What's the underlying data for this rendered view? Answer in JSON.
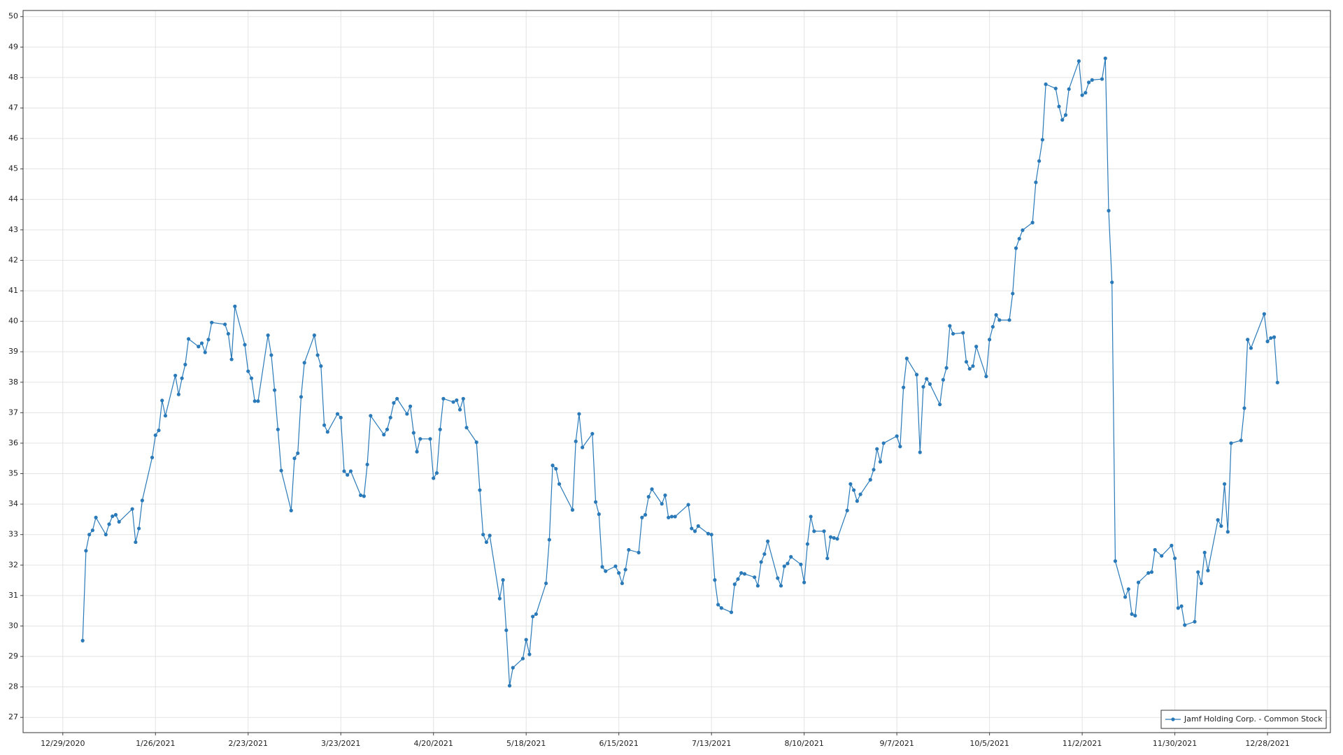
{
  "chart_data": {
    "type": "line",
    "x": [
      "1/4/2021",
      "1/5/2021",
      "1/6/2021",
      "1/7/2021",
      "1/8/2021",
      "1/11/2021",
      "1/12/2021",
      "1/13/2021",
      "1/14/2021",
      "1/15/2021",
      "1/19/2021",
      "1/20/2021",
      "1/21/2021",
      "1/22/2021",
      "1/25/2021",
      "1/26/2021",
      "1/27/2021",
      "1/28/2021",
      "1/29/2021",
      "2/1/2021",
      "2/2/2021",
      "2/3/2021",
      "2/4/2021",
      "2/5/2021",
      "2/8/2021",
      "2/9/2021",
      "2/10/2021",
      "2/11/2021",
      "2/12/2021",
      "2/16/2021",
      "2/17/2021",
      "2/18/2021",
      "2/19/2021",
      "2/22/2021",
      "2/23/2021",
      "2/24/2021",
      "2/25/2021",
      "2/26/2021",
      "3/1/2021",
      "3/2/2021",
      "3/3/2021",
      "3/4/2021",
      "3/5/2021",
      "3/8/2021",
      "3/9/2021",
      "3/10/2021",
      "3/11/2021",
      "3/12/2021",
      "3/15/2021",
      "3/16/2021",
      "3/17/2021",
      "3/18/2021",
      "3/19/2021",
      "3/22/2021",
      "3/23/2021",
      "3/24/2021",
      "3/25/2021",
      "3/26/2021",
      "3/29/2021",
      "3/30/2021",
      "3/31/2021",
      "4/1/2021",
      "4/5/2021",
      "4/6/2021",
      "4/7/2021",
      "4/8/2021",
      "4/9/2021",
      "4/12/2021",
      "4/13/2021",
      "4/14/2021",
      "4/15/2021",
      "4/16/2021",
      "4/19/2021",
      "4/20/2021",
      "4/21/2021",
      "4/22/2021",
      "4/23/2021",
      "4/26/2021",
      "4/27/2021",
      "4/28/2021",
      "4/29/2021",
      "4/30/2021",
      "5/3/2021",
      "5/4/2021",
      "5/5/2021",
      "5/6/2021",
      "5/7/2021",
      "5/10/2021",
      "5/11/2021",
      "5/12/2021",
      "5/13/2021",
      "5/14/2021",
      "5/17/2021",
      "5/18/2021",
      "5/19/2021",
      "5/20/2021",
      "5/21/2021",
      "5/24/2021",
      "5/25/2021",
      "5/26/2021",
      "5/27/2021",
      "5/28/2021",
      "6/1/2021",
      "6/2/2021",
      "6/3/2021",
      "6/4/2021",
      "6/7/2021",
      "6/8/2021",
      "6/9/2021",
      "6/10/2021",
      "6/11/2021",
      "6/14/2021",
      "6/15/2021",
      "6/16/2021",
      "6/17/2021",
      "6/18/2021",
      "6/21/2021",
      "6/22/2021",
      "6/23/2021",
      "6/24/2021",
      "6/25/2021",
      "6/28/2021",
      "6/29/2021",
      "6/30/2021",
      "7/1/2021",
      "7/2/2021",
      "7/6/2021",
      "7/7/2021",
      "7/8/2021",
      "7/9/2021",
      "7/12/2021",
      "7/13/2021",
      "7/14/2021",
      "7/15/2021",
      "7/16/2021",
      "7/19/2021",
      "7/20/2021",
      "7/21/2021",
      "7/22/2021",
      "7/23/2021",
      "7/26/2021",
      "7/27/2021",
      "7/28/2021",
      "7/29/2021",
      "7/30/2021",
      "8/2/2021",
      "8/3/2021",
      "8/4/2021",
      "8/5/2021",
      "8/6/2021",
      "8/9/2021",
      "8/10/2021",
      "8/11/2021",
      "8/12/2021",
      "8/13/2021",
      "8/16/2021",
      "8/17/2021",
      "8/18/2021",
      "8/19/2021",
      "8/20/2021",
      "8/23/2021",
      "8/24/2021",
      "8/25/2021",
      "8/26/2021",
      "8/27/2021",
      "8/30/2021",
      "8/31/2021",
      "9/1/2021",
      "9/2/2021",
      "9/3/2021",
      "9/7/2021",
      "9/8/2021",
      "9/9/2021",
      "9/10/2021",
      "9/13/2021",
      "9/14/2021",
      "9/15/2021",
      "9/16/2021",
      "9/17/2021",
      "9/20/2021",
      "9/21/2021",
      "9/22/2021",
      "9/23/2021",
      "9/24/2021",
      "9/27/2021",
      "9/28/2021",
      "9/29/2021",
      "9/30/2021",
      "10/1/2021",
      "10/4/2021",
      "10/5/2021",
      "10/6/2021",
      "10/7/2021",
      "10/8/2021",
      "10/11/2021",
      "10/12/2021",
      "10/13/2021",
      "10/14/2021",
      "10/15/2021",
      "10/18/2021",
      "10/19/2021",
      "10/20/2021",
      "10/21/2021",
      "10/22/2021",
      "10/25/2021",
      "10/26/2021",
      "10/27/2021",
      "10/28/2021",
      "10/29/2021",
      "11/1/2021",
      "11/2/2021",
      "11/3/2021",
      "11/4/2021",
      "11/5/2021",
      "11/8/2021",
      "11/9/2021",
      "11/10/2021",
      "11/11/2021",
      "11/12/2021",
      "11/15/2021",
      "11/16/2021",
      "11/17/2021",
      "11/18/2021",
      "11/19/2021",
      "11/22/2021",
      "11/23/2021",
      "11/24/2021",
      "11/26/2021",
      "11/29/2021",
      "11/30/2021",
      "12/1/2021",
      "12/2/2021",
      "12/3/2021",
      "12/6/2021",
      "12/7/2021",
      "12/8/2021",
      "12/9/2021",
      "12/10/2021",
      "12/13/2021",
      "12/14/2021",
      "12/15/2021",
      "12/16/2021",
      "12/17/2021",
      "12/20/2021",
      "12/21/2021",
      "12/22/2021",
      "12/23/2021",
      "12/27/2021",
      "12/28/2021",
      "12/29/2021",
      "12/30/2021",
      "12/31/2021"
    ],
    "series": [
      {
        "name": "Jamf Holding Corp. - Common Stock",
        "color": "#2a7ab9",
        "values": [
          29.52,
          32.47,
          33.0,
          33.14,
          33.56,
          33.0,
          33.34,
          33.6,
          33.65,
          33.42,
          33.84,
          32.75,
          33.2,
          34.12,
          35.53,
          36.26,
          36.42,
          37.4,
          36.9,
          38.22,
          37.6,
          38.13,
          38.58,
          39.42,
          39.17,
          39.28,
          38.98,
          39.4,
          39.96,
          39.9,
          39.59,
          38.75,
          40.49,
          39.23,
          38.36,
          38.13,
          37.38,
          37.38,
          39.54,
          38.89,
          37.74,
          36.45,
          35.1,
          33.79,
          35.5,
          35.67,
          37.52,
          38.64,
          39.54,
          38.89,
          38.53,
          36.59,
          36.37,
          36.96,
          36.84,
          35.08,
          34.96,
          35.08,
          34.29,
          34.26,
          35.3,
          36.9,
          36.28,
          36.45,
          36.84,
          37.32,
          37.46,
          36.96,
          37.21,
          36.34,
          35.72,
          36.14,
          36.14,
          34.85,
          35.02,
          36.45,
          37.46,
          37.35,
          37.41,
          37.1,
          37.46,
          36.51,
          36.03,
          34.46,
          33.0,
          32.75,
          32.97,
          30.9,
          31.51,
          29.86,
          28.04,
          28.63,
          28.93,
          29.55,
          29.07,
          30.31,
          30.39,
          31.4,
          32.83,
          35.27,
          35.16,
          34.66,
          33.81,
          36.06,
          36.96,
          35.86,
          36.31,
          34.07,
          33.67,
          31.94,
          31.8,
          31.96,
          31.74,
          31.4,
          31.85,
          32.5,
          32.41,
          33.56,
          33.65,
          34.24,
          34.49,
          34.01,
          34.29,
          33.56,
          33.59,
          33.59,
          33.98,
          33.2,
          33.11,
          33.28,
          33.03,
          33.0,
          31.51,
          30.7,
          30.59,
          30.45,
          31.37,
          31.54,
          31.74,
          31.71,
          31.6,
          31.32,
          32.1,
          32.36,
          32.78,
          31.57,
          31.32,
          31.96,
          32.05,
          32.27,
          32.02,
          31.43,
          32.69,
          33.59,
          33.11,
          33.11,
          32.22,
          32.92,
          32.89,
          32.86,
          33.79,
          34.66,
          34.46,
          34.1,
          34.32,
          34.8,
          35.13,
          35.81,
          35.39,
          36.0,
          36.23,
          35.89,
          37.83,
          38.78,
          38.25,
          35.7,
          37.85,
          38.11,
          37.94,
          37.27,
          38.08,
          38.47,
          39.85,
          39.59,
          39.62,
          38.67,
          38.44,
          38.53,
          39.17,
          38.19,
          39.4,
          39.82,
          40.21,
          40.04,
          40.04,
          40.91,
          42.4,
          42.71,
          42.99,
          43.24,
          44.56,
          45.26,
          45.96,
          47.78,
          47.64,
          47.05,
          46.61,
          46.77,
          47.62,
          48.54,
          47.42,
          47.5,
          47.84,
          47.92,
          47.95,
          48.63,
          43.63,
          41.28,
          32.13,
          30.95,
          31.21,
          30.39,
          30.34,
          31.43,
          31.74,
          31.77,
          32.5,
          32.3,
          32.64,
          32.22,
          30.59,
          30.65,
          30.03,
          30.14,
          31.77,
          31.4,
          32.41,
          31.82,
          33.48,
          33.28,
          34.66,
          33.09,
          36.0,
          36.09,
          37.15,
          39.4,
          39.12,
          40.24,
          39.34,
          39.45,
          39.48,
          37.99
        ]
      }
    ],
    "xlim": [
      "12/17/2020",
      "1/16/2022"
    ],
    "xticks": [
      "12/29/2020",
      "1/26/2021",
      "2/23/2021",
      "3/23/2021",
      "4/20/2021",
      "5/18/2021",
      "6/15/2021",
      "7/13/2021",
      "8/10/2021",
      "9/7/2021",
      "10/5/2021",
      "11/2/2021",
      "11/30/2021",
      "12/28/2021"
    ],
    "ylim": [
      26.5,
      50.2
    ],
    "yticks": [
      27,
      28,
      29,
      30,
      31,
      32,
      33,
      34,
      35,
      36,
      37,
      38,
      39,
      40,
      41,
      42,
      43,
      44,
      45,
      46,
      47,
      48,
      49,
      50
    ],
    "grid": true,
    "legend": "lower right"
  }
}
